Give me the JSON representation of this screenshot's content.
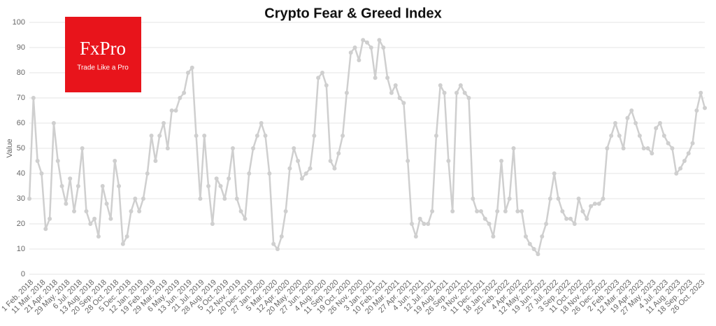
{
  "logo": {
    "name": "FxPro",
    "tagline": "Trade Like a Pro"
  },
  "chart_data": {
    "type": "line",
    "title": "Crypto Fear & Greed Index",
    "y_label": "Value",
    "color": "#cfcfcf",
    "grid": true,
    "ylim": [
      0,
      100
    ],
    "yticks": [
      0,
      10,
      20,
      30,
      40,
      50,
      60,
      70,
      80,
      90,
      100
    ],
    "categories": [
      "1 Feb. 2018",
      null,
      null,
      "11 Mar. 2018",
      null,
      null,
      "21 Apr. 2018",
      null,
      null,
      "29 May. 2018",
      null,
      null,
      "6 Jul. 2018",
      null,
      null,
      "13 Aug. 2018",
      null,
      null,
      "20 Sep. 2018",
      null,
      null,
      "28 Oct. 2018",
      null,
      null,
      "5 Dec. 2018",
      null,
      null,
      "12 Jan. 2019",
      null,
      null,
      "19 Feb. 2019",
      null,
      null,
      "29 Mar. 2019",
      null,
      null,
      "6 May. 2019",
      null,
      null,
      "13 Jun. 2019",
      null,
      null,
      "21 Jul. 2019",
      null,
      null,
      "28 Aug. 2019",
      null,
      null,
      "5 Oct. 2019",
      null,
      null,
      "12 Nov. 2019",
      null,
      null,
      "20 Dec. 2019",
      null,
      null,
      "27 Jan. 2020",
      null,
      null,
      "5 Mar. 2020",
      null,
      null,
      "12 Apr. 2020",
      null,
      null,
      "20 May. 2020",
      null,
      null,
      "27 Jun. 2020",
      null,
      null,
      "4 Aug. 2020",
      null,
      null,
      "11 Sep. 2020",
      null,
      null,
      "19 Oct. 2020",
      null,
      null,
      "26 Nov. 2020",
      null,
      null,
      "3 Jan. 2021",
      null,
      null,
      "10 Feb. 2021",
      null,
      null,
      "20 Mar. 2021",
      null,
      null,
      "27 Apr. 2021",
      null,
      null,
      "4 Jun. 2021",
      null,
      null,
      "12 Jul. 2021",
      null,
      null,
      "19 Aug. 2021",
      null,
      null,
      "26 Sep. 2021",
      null,
      null,
      "3 Nov. 2021",
      null,
      null,
      "11 Dec. 2021",
      null,
      null,
      "18 Jan. 2022",
      null,
      null,
      "25 Feb. 2022",
      null,
      null,
      "4 Apr. 2022",
      null,
      null,
      "12 May. 2022",
      null,
      null,
      "19 Jun. 2022",
      null,
      null,
      "27 Jul. 2022",
      null,
      null,
      "3 Sep. 2022",
      null,
      null,
      "11 Oct. 2022",
      null,
      null,
      "18 Nov. 2022",
      null,
      null,
      "26 Dec. 2022",
      null,
      null,
      "2 Feb. 2023",
      null,
      null,
      "12 Mar. 2023",
      null,
      null,
      "19 Apr. 2023",
      null,
      null,
      "27 May. 2023",
      null,
      null,
      "4 Jul. 2023",
      null,
      null,
      "11 Aug. 2023",
      null,
      null,
      "18 Sep. 2023",
      null,
      null,
      "26 Oct. 2023",
      null
    ],
    "values": [
      30,
      70,
      45,
      40,
      18,
      22,
      60,
      45,
      35,
      28,
      38,
      25,
      35,
      50,
      25,
      20,
      22,
      15,
      35,
      28,
      22,
      45,
      35,
      12,
      15,
      25,
      30,
      25,
      30,
      40,
      55,
      45,
      55,
      60,
      50,
      65,
      65,
      70,
      72,
      80,
      82,
      55,
      30,
      55,
      35,
      20,
      38,
      35,
      30,
      38,
      50,
      30,
      25,
      22,
      40,
      50,
      55,
      60,
      55,
      40,
      12,
      10,
      15,
      25,
      42,
      50,
      45,
      38,
      40,
      42,
      55,
      78,
      80,
      75,
      45,
      42,
      48,
      55,
      72,
      88,
      90,
      85,
      93,
      92,
      90,
      78,
      93,
      90,
      78,
      72,
      75,
      70,
      68,
      45,
      20,
      15,
      22,
      20,
      20,
      25,
      55,
      75,
      72,
      45,
      25,
      72,
      75,
      72,
      70,
      30,
      25,
      25,
      22,
      20,
      15,
      25,
      45,
      25,
      30,
      50,
      25,
      25,
      15,
      12,
      10,
      8,
      15,
      20,
      30,
      40,
      30,
      25,
      22,
      22,
      20,
      30,
      25,
      22,
      27,
      28,
      28,
      30,
      50,
      55,
      60,
      55,
      50,
      62,
      65,
      60,
      55,
      50,
      50,
      48,
      58,
      60,
      55,
      52,
      50,
      40,
      42,
      45,
      48,
      52,
      65,
      72,
      66
    ]
  }
}
